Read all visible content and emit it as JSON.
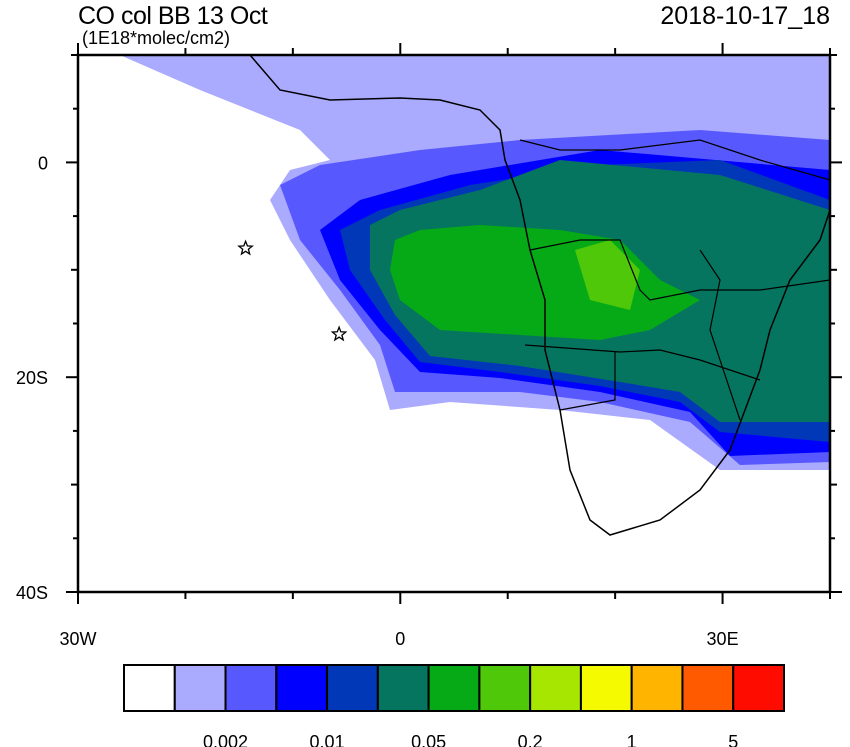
{
  "header": {
    "title": "CO col BB 13 Oct",
    "units": "(1E18*molec/cm2)",
    "datetime": "2018-10-17_18"
  },
  "map": {
    "lon_range": [
      -30,
      40
    ],
    "lat_range": [
      -40,
      10
    ],
    "lon_ticks": [
      {
        "value": -30,
        "label": "30W"
      },
      {
        "value": 0,
        "label": "0"
      },
      {
        "value": 30,
        "label": "30E"
      }
    ],
    "lat_ticks": [
      {
        "value": 0,
        "label": "0"
      },
      {
        "value": -20,
        "label": "20S"
      },
      {
        "value": -40,
        "label": "40S"
      }
    ],
    "markers": [
      {
        "type": "star",
        "lon": -14.4,
        "lat": -8.0
      },
      {
        "type": "star",
        "lon": -5.7,
        "lat": -16.0
      }
    ]
  },
  "colorbar": {
    "colors": [
      "#ffffff",
      "#aaaaff",
      "#5858ff",
      "#0000ff",
      "#0038b8",
      "#06755f",
      "#06aa16",
      "#50c80a",
      "#a6e600",
      "#f5fa00",
      "#ffb400",
      "#ff5a00",
      "#ff0c00"
    ],
    "labels": [
      {
        "after_box": 2,
        "text": "0.002"
      },
      {
        "after_box": 4,
        "text": "0.01"
      },
      {
        "after_box": 6,
        "text": "0.05"
      },
      {
        "after_box": 8,
        "text": "0.2"
      },
      {
        "after_box": 10,
        "text": "1"
      },
      {
        "after_box": 12,
        "text": "5"
      }
    ]
  }
}
